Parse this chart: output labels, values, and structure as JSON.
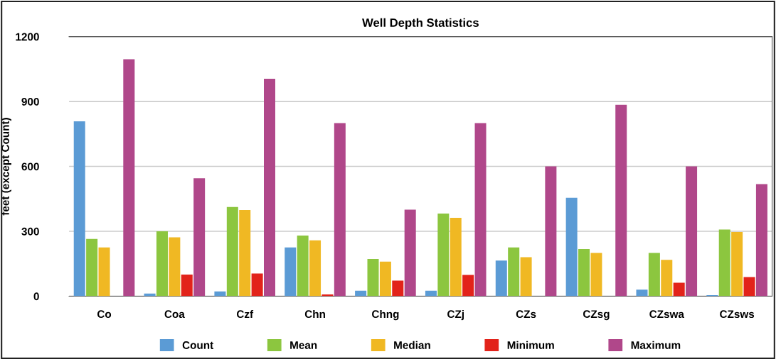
{
  "chart_data": {
    "type": "bar",
    "title": "Well Depth Statistics",
    "ylabel": "feet (except Count)",
    "categories": [
      "Co",
      "Coa",
      "Czf",
      "Chn",
      "Chng",
      "CZj",
      "CZs",
      "CZsg",
      "CZswa",
      "CZsws"
    ],
    "series": [
      {
        "name": "Count",
        "color": "#5b9bd5",
        "values": [
          808,
          12,
          22,
          225,
          25,
          25,
          165,
          455,
          30,
          5
        ]
      },
      {
        "name": "Mean",
        "color": "#8cc63f",
        "values": [
          265,
          300,
          412,
          280,
          172,
          382,
          225,
          218,
          200,
          308
        ]
      },
      {
        "name": "Median",
        "color": "#f0b823",
        "values": [
          225,
          272,
          398,
          258,
          160,
          362,
          180,
          200,
          168,
          297
        ]
      },
      {
        "name": "Minimum",
        "color": "#e2231a",
        "values": [
          0,
          100,
          105,
          8,
          72,
          98,
          0,
          0,
          62,
          88
        ]
      },
      {
        "name": "Maximum",
        "color": "#b0478a",
        "values": [
          1095,
          545,
          1005,
          800,
          400,
          800,
          600,
          885,
          600,
          518
        ]
      }
    ],
    "ylim": [
      0,
      1200
    ],
    "yticks": [
      0,
      300,
      600,
      900,
      1200
    ],
    "grid": "y",
    "legend": "bottom"
  }
}
